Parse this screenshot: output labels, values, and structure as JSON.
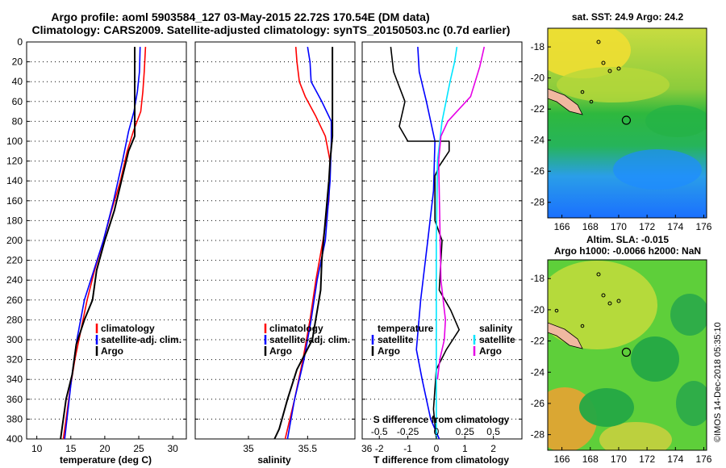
{
  "header": {
    "line1": "Argo profile: aoml 5903584_127 03-May-2015 22.72S 170.54E (DM data)",
    "line2": "Climatology: CARS2009. Satellite-adjusted climatology: synTS_20150503.nc (0.7d earlier)"
  },
  "colors": {
    "climatology": "#ff0000",
    "satellite": "#0000ff",
    "argo": "#000000",
    "s_satellite": "#00e5ff",
    "s_argo": "#e600e6"
  },
  "chart_data": [
    {
      "type": "line",
      "panel": "temperature",
      "xlabel": "temperature (deg C)",
      "ylabel": "",
      "xlim": [
        8.5,
        32
      ],
      "ylim": [
        400,
        0
      ],
      "xticks": [
        "10",
        "15",
        "20",
        "25",
        "30"
      ],
      "yticks": [
        "0",
        "20",
        "40",
        "60",
        "80",
        "100",
        "120",
        "140",
        "160",
        "180",
        "200",
        "220",
        "240",
        "260",
        "280",
        "300",
        "320",
        "340",
        "360",
        "380",
        "400"
      ],
      "legend": [
        "climatology",
        "satellite-adj. clim.",
        "Argo"
      ],
      "series": [
        {
          "name": "climatology",
          "color": "#ff0000",
          "points": [
            [
              26.0,
              5
            ],
            [
              25.8,
              30
            ],
            [
              25.6,
              50
            ],
            [
              25.3,
              70
            ],
            [
              24.2,
              90
            ],
            [
              23.3,
              110
            ],
            [
              22.3,
              140
            ],
            [
              21.0,
              170
            ],
            [
              19.8,
              200
            ],
            [
              18.5,
              230
            ],
            [
              17.4,
              260
            ],
            [
              16.5,
              290
            ],
            [
              15.6,
              320
            ],
            [
              14.9,
              350
            ],
            [
              14.3,
              380
            ],
            [
              13.9,
              400
            ]
          ]
        },
        {
          "name": "satellite-adj. clim.",
          "color": "#0000ff",
          "points": [
            [
              25.2,
              5
            ],
            [
              25.1,
              30
            ],
            [
              24.8,
              50
            ],
            [
              24.3,
              70
            ],
            [
              23.5,
              90
            ],
            [
              22.6,
              120
            ],
            [
              21.3,
              160
            ],
            [
              19.8,
              200
            ],
            [
              18.4,
              230
            ],
            [
              17.0,
              260
            ],
            [
              15.9,
              300
            ],
            [
              15.1,
              340
            ],
            [
              14.6,
              370
            ],
            [
              14.1,
              400
            ]
          ]
        },
        {
          "name": "Argo",
          "color": "#000000",
          "points": [
            [
              24.4,
              5
            ],
            [
              24.4,
              55
            ],
            [
              24.4,
              95
            ],
            [
              23.5,
              110
            ],
            [
              22.8,
              130
            ],
            [
              21.4,
              170
            ],
            [
              20.0,
              200
            ],
            [
              18.8,
              230
            ],
            [
              18.2,
              260
            ],
            [
              17.0,
              280
            ],
            [
              15.8,
              305
            ],
            [
              15.2,
              335
            ],
            [
              14.3,
              360
            ],
            [
              13.5,
              400
            ]
          ]
        }
      ]
    },
    {
      "type": "line",
      "panel": "salinity",
      "xlabel": "salinity",
      "ylabel": "",
      "xlim": [
        34.55,
        35.9
      ],
      "ylim": [
        400,
        0
      ],
      "xticks": [
        "35",
        "35.5",
        "36"
      ],
      "legend": [
        "climatology",
        "satellite-adj. clim.",
        "Argo"
      ],
      "series": [
        {
          "name": "climatology",
          "color": "#ff0000",
          "points": [
            [
              35.4,
              5
            ],
            [
              35.41,
              20
            ],
            [
              35.43,
              40
            ],
            [
              35.48,
              55
            ],
            [
              35.57,
              75
            ],
            [
              35.65,
              95
            ],
            [
              35.69,
              120
            ],
            [
              35.68,
              160
            ],
            [
              35.63,
              200
            ],
            [
              35.57,
              240
            ],
            [
              35.52,
              280
            ],
            [
              35.46,
              320
            ],
            [
              35.39,
              360
            ],
            [
              35.31,
              400
            ]
          ]
        },
        {
          "name": "satellite-adj. clim.",
          "color": "#0000ff",
          "points": [
            [
              35.5,
              5
            ],
            [
              35.52,
              20
            ],
            [
              35.53,
              40
            ],
            [
              35.62,
              60
            ],
            [
              35.7,
              80
            ],
            [
              35.7,
              100
            ],
            [
              35.69,
              140
            ],
            [
              35.65,
              200
            ],
            [
              35.58,
              240
            ],
            [
              35.53,
              280
            ],
            [
              35.47,
              320
            ],
            [
              35.39,
              360
            ],
            [
              35.33,
              400
            ]
          ]
        },
        {
          "name": "Argo",
          "color": "#000000",
          "points": [
            [
              35.71,
              5
            ],
            [
              35.71,
              60
            ],
            [
              35.71,
              95
            ],
            [
              35.69,
              120
            ],
            [
              35.68,
              140
            ],
            [
              35.65,
              180
            ],
            [
              35.62,
              220
            ],
            [
              35.61,
              250
            ],
            [
              35.54,
              300
            ],
            [
              35.41,
              330
            ],
            [
              35.33,
              360
            ],
            [
              35.26,
              390
            ],
            [
              35.22,
              400
            ]
          ]
        }
      ]
    },
    {
      "type": "line",
      "panel": "differences",
      "xlabel": "T difference from climatology",
      "x2label": "S difference from climatology",
      "xlim": [
        -2.6,
        3.0
      ],
      "x2lim": [
        -0.65,
        0.75
      ],
      "ylim": [
        400,
        0
      ],
      "xticks": [
        "-2",
        "-1",
        "0",
        "1",
        "2"
      ],
      "x2ticks": [
        "-0.5",
        "-0.25",
        "0",
        "0.25",
        "0.5"
      ],
      "legend_titles": [
        "temperature",
        "salinity"
      ],
      "legend": [
        "satellite",
        "Argo"
      ],
      "series": [
        {
          "name": "T satellite",
          "color": "#0000ff",
          "points": [
            [
              -0.65,
              5
            ],
            [
              -0.6,
              30
            ],
            [
              -0.35,
              60
            ],
            [
              -0.05,
              100
            ],
            [
              -0.1,
              150
            ],
            [
              -0.3,
              200
            ],
            [
              -0.55,
              260
            ],
            [
              -0.7,
              310
            ],
            [
              -0.5,
              340
            ],
            [
              -0.2,
              380
            ],
            [
              0.1,
              400
            ]
          ]
        },
        {
          "name": "T Argo",
          "color": "#000000",
          "points": [
            [
              -1.6,
              5
            ],
            [
              -1.5,
              30
            ],
            [
              -1.1,
              60
            ],
            [
              -1.3,
              85
            ],
            [
              -1.0,
              100
            ],
            [
              0.45,
              100
            ],
            [
              0.45,
              110
            ],
            [
              0.1,
              125
            ],
            [
              -0.05,
              135
            ],
            [
              -0.05,
              180
            ],
            [
              0.2,
              200
            ],
            [
              0.1,
              250
            ],
            [
              0.5,
              270
            ],
            [
              0.8,
              290
            ],
            [
              0.35,
              310
            ],
            [
              0.0,
              330
            ],
            [
              -0.1,
              370
            ],
            [
              0.0,
              400
            ]
          ]
        },
        {
          "name": "S satellite",
          "color": "#00e5ff",
          "points": [
            [
              0.18,
              5
            ],
            [
              0.16,
              20
            ],
            [
              0.12,
              40
            ],
            [
              0.05,
              80
            ],
            [
              0.01,
              120
            ],
            [
              0.0,
              200
            ],
            [
              0.0,
              300
            ],
            [
              0.0,
              400
            ]
          ]
        },
        {
          "name": "S Argo",
          "color": "#e600e6",
          "points": [
            [
              0.42,
              5
            ],
            [
              0.38,
              25
            ],
            [
              0.3,
              55
            ],
            [
              0.1,
              80
            ],
            [
              0.04,
              95
            ],
            [
              0.02,
              120
            ],
            [
              0.03,
              180
            ],
            [
              0.04,
              240
            ],
            [
              0.08,
              280
            ],
            [
              0.07,
              300
            ],
            [
              0.03,
              320
            ],
            [
              0.01,
              340
            ]
          ]
        }
      ]
    },
    {
      "type": "heatmap",
      "panel": "sst_map",
      "title": "sat. SST: 24.9 Argo: 24.2",
      "xlim": [
        165,
        176.2
      ],
      "ylim": [
        -29,
        -16.8
      ],
      "xticks": [
        "166",
        "168",
        "170",
        "172",
        "174",
        "176"
      ],
      "yticks": [
        "-18",
        "-20",
        "-22",
        "-24",
        "-26",
        "-28"
      ],
      "argo_position": [
        170.54,
        -22.72
      ]
    },
    {
      "type": "heatmap",
      "panel": "sla_map",
      "title": "Altim. SLA: -0.015",
      "subtitle": "Argo h1000: -0.0066 h2000: NaN",
      "xlim": [
        165,
        176.2
      ],
      "ylim": [
        -29,
        -16.8
      ],
      "xticks": [
        "166",
        "168",
        "170",
        "172",
        "174",
        "176"
      ],
      "yticks": [
        "-18",
        "-20",
        "-22",
        "-24",
        "-26",
        "-28"
      ],
      "argo_position": [
        170.54,
        -22.72
      ]
    }
  ],
  "footer": {
    "credit": "©IMOS 14-Dec-2018 05:35:10"
  }
}
